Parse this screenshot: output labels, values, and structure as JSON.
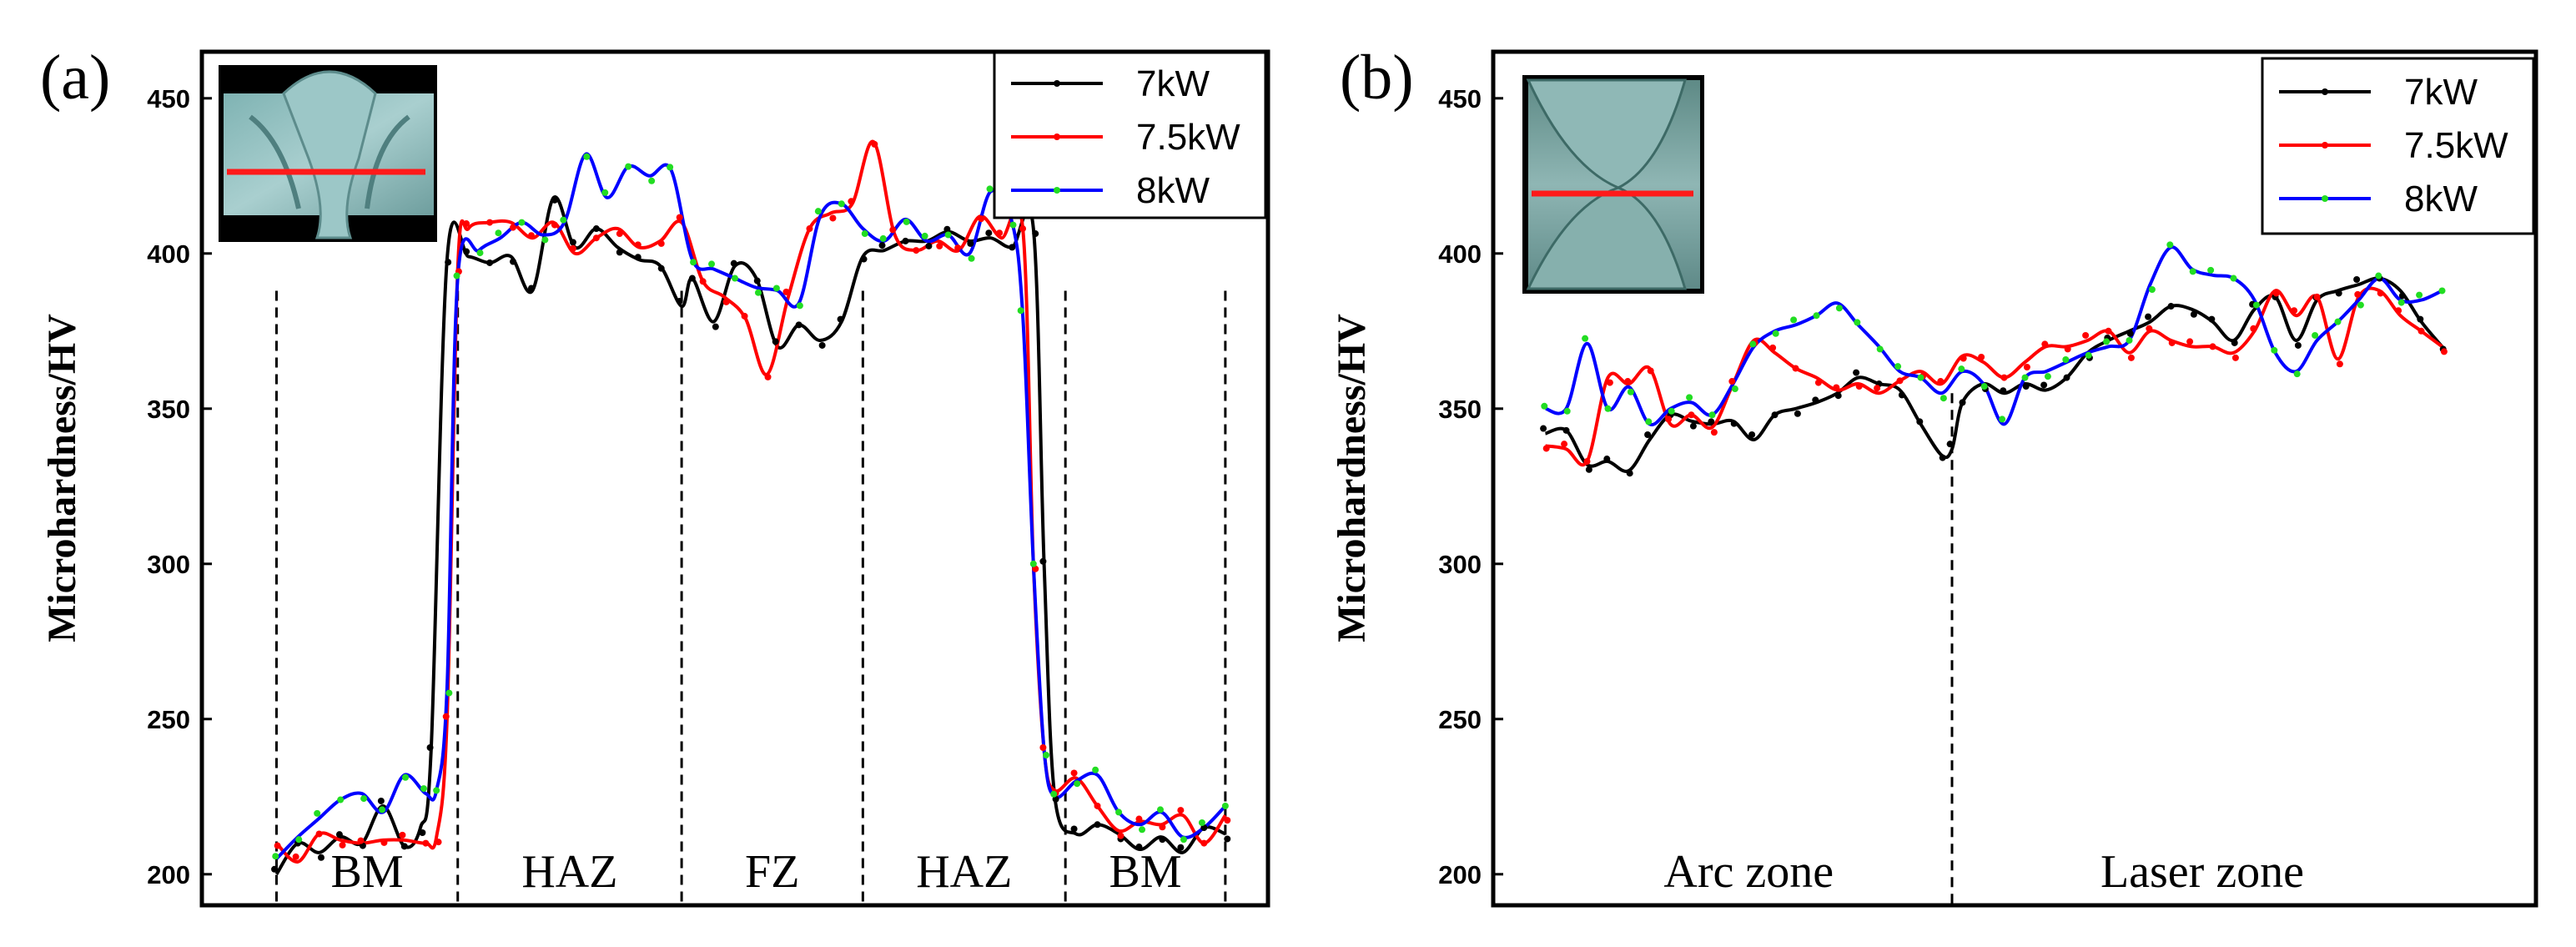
{
  "chart_data": [
    {
      "type": "line",
      "panel_label": "(a)",
      "ylabel": "Microhardness/HV",
      "ylim": [
        190,
        465
      ],
      "yticks": [
        200,
        250,
        300,
        350,
        400,
        450
      ],
      "xlim": [
        0,
        100
      ],
      "legend": "top-right",
      "zones": [
        {
          "label": "BM",
          "start": 7,
          "end": 24
        },
        {
          "label": "HAZ",
          "start": 24,
          "end": 45
        },
        {
          "label": "FZ",
          "start": 45,
          "end": 62
        },
        {
          "label": "HAZ",
          "start": 62,
          "end": 81
        },
        {
          "label": "BM",
          "start": 81,
          "end": 96
        }
      ],
      "series": [
        {
          "name": "7kW",
          "color": "#000000",
          "x": [
            7,
            9,
            11,
            13,
            15,
            17,
            19,
            20.5,
            21.5,
            23,
            25,
            27,
            29,
            31,
            33,
            35,
            37,
            39,
            41,
            43,
            45,
            46,
            48,
            50,
            52,
            54,
            56,
            58,
            60,
            62,
            64,
            66,
            68,
            70,
            72,
            74,
            76,
            78,
            79,
            80,
            82,
            84,
            86,
            88,
            90,
            92,
            94,
            96
          ],
          "y": [
            200,
            210,
            207,
            212,
            210,
            222,
            209,
            215,
            240,
            398,
            399,
            397,
            399,
            388,
            418,
            402,
            408,
            402,
            398,
            396,
            383,
            392,
            378,
            396,
            392,
            370,
            377,
            372,
            378,
            399,
            401,
            404,
            404,
            407,
            404,
            405,
            402,
            408,
            300,
            225,
            213,
            216,
            213,
            208,
            212,
            207,
            215,
            213
          ]
        },
        {
          "name": "7.5kW",
          "color": "#ff0000",
          "x": [
            7,
            9,
            11,
            13,
            15,
            17,
            19,
            21,
            22,
            23,
            24,
            25,
            27,
            29,
            31,
            33,
            35,
            37,
            39,
            41,
            43,
            45,
            47,
            49,
            51,
            53,
            55,
            57,
            59,
            61,
            63,
            65,
            67,
            69,
            71,
            73,
            75,
            77,
            78,
            79,
            80,
            82,
            84,
            86,
            88,
            90,
            92,
            94,
            96
          ],
          "y": [
            210,
            204,
            213,
            211,
            210,
            211,
            211,
            210,
            212,
            250,
            395,
            408,
            410,
            410,
            405,
            410,
            400,
            405,
            408,
            402,
            404,
            410,
            391,
            386,
            379,
            361,
            386,
            408,
            413,
            416,
            436,
            406,
            401,
            404,
            401,
            412,
            405,
            408,
            300,
            240,
            227,
            231,
            222,
            214,
            217,
            216,
            219,
            210,
            219
          ]
        },
        {
          "name": "8kW",
          "color": "#0000ff",
          "x": [
            7,
            9,
            11,
            13,
            15,
            17,
            19,
            21,
            22,
            23,
            24,
            26,
            28,
            30,
            32,
            34,
            36,
            38,
            40,
            42,
            44,
            46,
            48,
            50,
            52,
            54,
            56,
            58,
            60,
            62,
            64,
            66,
            68,
            70,
            72,
            74,
            76,
            77,
            78,
            79,
            80,
            82,
            84,
            86,
            88,
            90,
            92,
            94,
            96
          ],
          "y": [
            205,
            212,
            218,
            224,
            226,
            220,
            232,
            226,
            227,
            260,
            392,
            401,
            405,
            410,
            406,
            410,
            432,
            418,
            428,
            425,
            427,
            398,
            395,
            392,
            389,
            388,
            384,
            412,
            416,
            408,
            404,
            411,
            404,
            406,
            400,
            420,
            410,
            380,
            300,
            240,
            225,
            230,
            232,
            220,
            216,
            220,
            212,
            215,
            222
          ]
        }
      ]
    },
    {
      "type": "line",
      "panel_label": "(b)",
      "ylabel": "Microhardness/HV",
      "ylim": [
        190,
        465
      ],
      "yticks": [
        200,
        250,
        300,
        350,
        400,
        450
      ],
      "xlim": [
        0,
        100
      ],
      "legend": "top-right",
      "divider": 44,
      "zones": [
        {
          "label": "Arc zone",
          "start": 5,
          "end": 44
        },
        {
          "label": "Laser zone",
          "start": 44,
          "end": 92
        }
      ],
      "series": [
        {
          "name": "7kW",
          "color": "#000000",
          "x": [
            5,
            7,
            9,
            11,
            13,
            15,
            17,
            19,
            21,
            23,
            25,
            27,
            29,
            31,
            33,
            35,
            37,
            39,
            41,
            43,
            44,
            45,
            47,
            49,
            51,
            53,
            55,
            57,
            59,
            61,
            63,
            65,
            67,
            69,
            71,
            73,
            75,
            77,
            79,
            81,
            83,
            85,
            87,
            89,
            91
          ],
          "y": [
            342,
            343,
            332,
            333,
            330,
            340,
            348,
            346,
            345,
            346,
            340,
            348,
            350,
            352,
            355,
            360,
            358,
            356,
            345,
            335,
            337,
            352,
            358,
            355,
            358,
            356,
            360,
            368,
            372,
            375,
            378,
            383,
            382,
            378,
            372,
            382,
            386,
            372,
            385,
            388,
            390,
            392,
            388,
            378,
            370
          ]
        },
        {
          "name": "7.5kW",
          "color": "#ff0000",
          "x": [
            5,
            7,
            9,
            11,
            13,
            15,
            17,
            19,
            21,
            23,
            25,
            27,
            29,
            31,
            33,
            35,
            37,
            39,
            41,
            43,
            45,
            47,
            49,
            51,
            53,
            55,
            57,
            59,
            61,
            63,
            65,
            67,
            69,
            71,
            73,
            75,
            77,
            79,
            81,
            83,
            85,
            87,
            89,
            91
          ],
          "y": [
            338,
            337,
            333,
            360,
            358,
            363,
            345,
            348,
            344,
            358,
            372,
            368,
            363,
            360,
            356,
            358,
            355,
            359,
            362,
            358,
            367,
            365,
            360,
            365,
            370,
            370,
            372,
            375,
            368,
            375,
            372,
            370,
            370,
            368,
            375,
            388,
            380,
            386,
            366,
            386,
            388,
            380,
            375,
            370
          ]
        },
        {
          "name": "8kW",
          "color": "#0000ff",
          "x": [
            5,
            7,
            9,
            11,
            13,
            15,
            17,
            19,
            21,
            23,
            25,
            27,
            29,
            31,
            33,
            35,
            37,
            39,
            41,
            43,
            45,
            47,
            49,
            51,
            53,
            55,
            57,
            59,
            61,
            63,
            65,
            67,
            69,
            71,
            73,
            75,
            77,
            79,
            81,
            83,
            85,
            87,
            89,
            91
          ],
          "y": [
            350,
            350,
            371,
            350,
            357,
            345,
            350,
            352,
            348,
            358,
            370,
            375,
            377,
            380,
            384,
            377,
            370,
            362,
            360,
            355,
            362,
            358,
            345,
            360,
            362,
            365,
            368,
            370,
            372,
            390,
            402,
            395,
            393,
            392,
            385,
            368,
            362,
            372,
            378,
            385,
            392,
            385,
            385,
            388
          ]
        }
      ]
    }
  ]
}
